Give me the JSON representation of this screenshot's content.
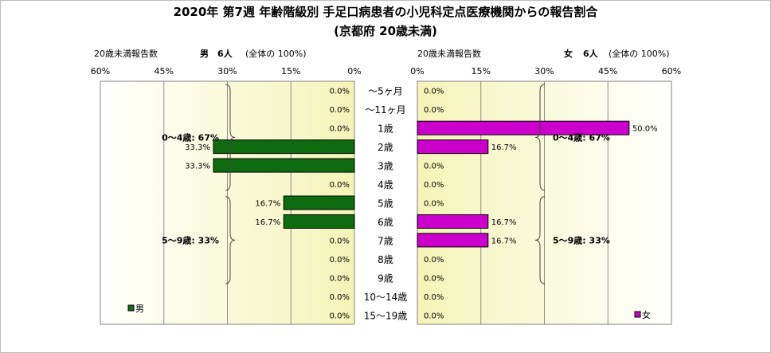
{
  "title": "2020年 第7週 年齢階級別 手足口病患者の小児科定点医療機関からの報告割合",
  "subtitle": "(京都府 20歳未満)",
  "chart_data": [
    {
      "type": "bar",
      "orientation": "horizontal",
      "side": "left",
      "axis_caption": "20歳未満報告数",
      "header_label": "男",
      "header_count": "6人",
      "header_note": "(全体の 100%)",
      "categories": [
        "～5ヶ月",
        "～11ヶ月",
        "1歳",
        "2歳",
        "3歳",
        "4歳",
        "5歳",
        "6歳",
        "7歳",
        "8歳",
        "9歳",
        "10～14歳",
        "15～19歳"
      ],
      "series": [
        {
          "name": "男",
          "values": [
            0,
            0,
            0,
            33.3,
            33.3,
            0,
            16.7,
            16.7,
            0,
            0,
            0,
            0,
            0
          ]
        }
      ],
      "data_labels": [
        "0.0%",
        "0.0%",
        "0.0%",
        "33.3%",
        "33.3%",
        "0.0%",
        "16.7%",
        "16.7%",
        "0.0%",
        "0.0%",
        "0.0%",
        "0.0%",
        "0.0%"
      ],
      "xlim": [
        0,
        60
      ],
      "ticks": [
        "0%",
        "15%",
        "30%",
        "45%",
        "60%"
      ],
      "reversed_axis": true,
      "color": "#0f6b0f",
      "legend_position": "bottom-left",
      "group_annotations": [
        {
          "label": "0～4歳: 67%",
          "from": 0,
          "to": 5
        },
        {
          "label": "5～9歳: 33%",
          "from": 6,
          "to": 10
        }
      ]
    },
    {
      "type": "bar",
      "orientation": "horizontal",
      "side": "right",
      "axis_caption": "20歳未満報告数",
      "header_label": "女",
      "header_count": "6人",
      "header_note": "(全体の 100%)",
      "categories": [
        "～5ヶ月",
        "～11ヶ月",
        "1歳",
        "2歳",
        "3歳",
        "4歳",
        "5歳",
        "6歳",
        "7歳",
        "8歳",
        "9歳",
        "10～14歳",
        "15～19歳"
      ],
      "series": [
        {
          "name": "女",
          "values": [
            0,
            0,
            50,
            16.7,
            0,
            0,
            0,
            16.7,
            16.7,
            0,
            0,
            0,
            0
          ]
        }
      ],
      "data_labels": [
        "0.0%",
        "0.0%",
        "50.0%",
        "16.7%",
        "0.0%",
        "0.0%",
        "0.0%",
        "16.7%",
        "16.7%",
        "0.0%",
        "0.0%",
        "0.0%",
        "0.0%"
      ],
      "xlim": [
        0,
        60
      ],
      "ticks": [
        "0%",
        "15%",
        "30%",
        "45%",
        "60%"
      ],
      "reversed_axis": false,
      "color": "#cc00cc",
      "legend_position": "bottom-right",
      "group_annotations": [
        {
          "label": "0～4歳: 67%",
          "from": 0,
          "to": 5
        },
        {
          "label": "5～9歳: 33%",
          "from": 6,
          "to": 10
        }
      ]
    }
  ]
}
